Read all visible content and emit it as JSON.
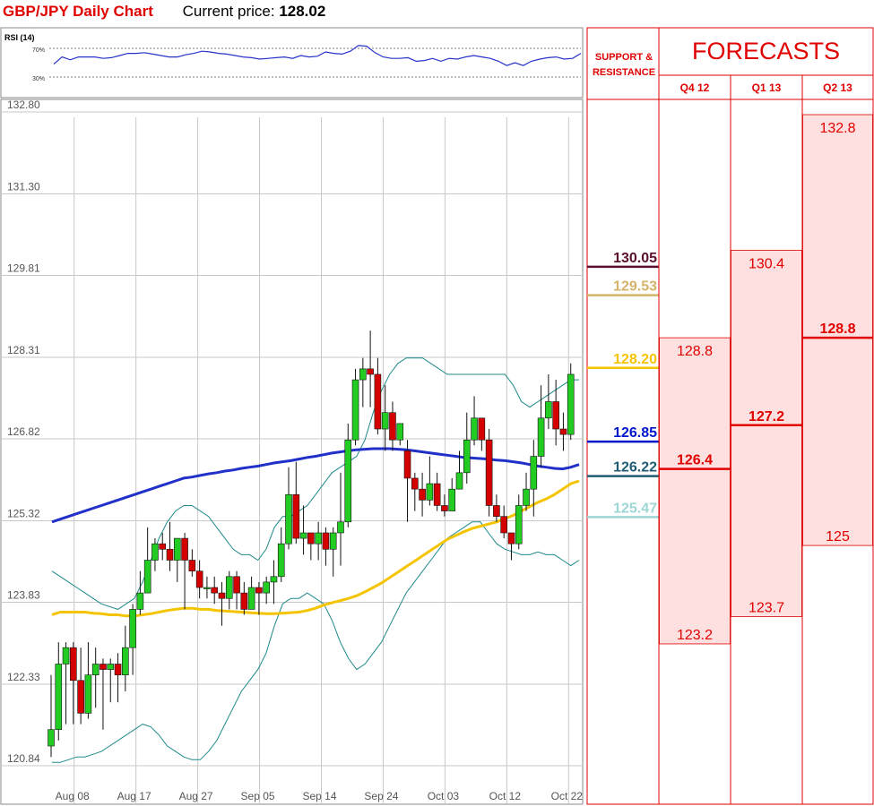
{
  "header": {
    "title": "GBP/JPY Daily Chart",
    "price_label": "Current price:",
    "price_value": "128.02"
  },
  "rsi": {
    "label": "RSI (14)",
    "levels": [
      "70%",
      "30%"
    ],
    "values": [
      48,
      58,
      54,
      58,
      58,
      58,
      56,
      57,
      60,
      63,
      63,
      64,
      62,
      60,
      58,
      58,
      61,
      63,
      66,
      65,
      63,
      62,
      60,
      58,
      57,
      55,
      56,
      57,
      58,
      56,
      60,
      58,
      59,
      65,
      63,
      62,
      66,
      74,
      73,
      64,
      58,
      56,
      56,
      57,
      52,
      53,
      56,
      52,
      56,
      55,
      58,
      60,
      58,
      56,
      52,
      46,
      50,
      46,
      52,
      55,
      57,
      58,
      55,
      56,
      63
    ]
  },
  "chart_data": {
    "type": "candlestick",
    "title": "GBP/JPY Daily Chart",
    "y_tick_labels": [
      "132.80",
      "131.30",
      "129.81",
      "128.31",
      "126.82",
      "125.32",
      "123.83",
      "122.33",
      "120.84"
    ],
    "y_ticks": [
      132.8,
      131.3,
      129.81,
      128.31,
      126.82,
      125.32,
      123.83,
      122.33,
      120.84
    ],
    "ylim": [
      120.84,
      132.8
    ],
    "x_tick_labels": [
      "Aug 08",
      "Aug 17",
      "Aug 27",
      "Sep 05",
      "Sep 14",
      "Sep 24",
      "Oct 03",
      "Oct 12",
      "Oct 22"
    ],
    "x_tick_index": [
      2,
      9,
      16,
      23,
      30,
      37,
      44,
      51,
      58
    ],
    "grid": true,
    "candles": [
      [
        121.2,
        121.5,
        122.5,
        121.0
      ],
      [
        121.5,
        122.7,
        123.1,
        121.3
      ],
      [
        122.7,
        123.0,
        123.1,
        121.6
      ],
      [
        123.0,
        122.4,
        123.1,
        121.6
      ],
      [
        122.4,
        121.8,
        123.0,
        121.6
      ],
      [
        121.8,
        122.5,
        123.1,
        121.7
      ],
      [
        122.5,
        122.7,
        123.0,
        121.9
      ],
      [
        122.7,
        122.6,
        122.8,
        121.5
      ],
      [
        122.6,
        122.7,
        122.8,
        122.0
      ],
      [
        122.7,
        122.5,
        122.9,
        122.0
      ],
      [
        122.5,
        123.0,
        123.4,
        122.2
      ],
      [
        123.0,
        123.7,
        123.8,
        122.5
      ],
      [
        123.7,
        124.0,
        124.4,
        123.6
      ],
      [
        124.0,
        124.6,
        125.2,
        124.0
      ],
      [
        124.6,
        124.9,
        125.0,
        124.4
      ],
      [
        124.9,
        124.8,
        125.1,
        124.6
      ],
      [
        124.8,
        124.6,
        125.3,
        124.4
      ],
      [
        124.6,
        125.0,
        125.0,
        124.2
      ],
      [
        125.0,
        124.6,
        125.1,
        123.7
      ],
      [
        124.6,
        124.4,
        124.8,
        124.3
      ],
      [
        124.4,
        124.1,
        124.6,
        123.9
      ],
      [
        124.1,
        124.1,
        124.3,
        123.9
      ],
      [
        124.1,
        124.0,
        124.3,
        123.8
      ],
      [
        124.0,
        123.9,
        124.2,
        123.4
      ],
      [
        123.9,
        124.3,
        124.4,
        123.7
      ],
      [
        124.3,
        124.0,
        124.4,
        123.7
      ],
      [
        124.0,
        123.7,
        124.2,
        123.6
      ],
      [
        123.7,
        124.1,
        124.3,
        123.7
      ],
      [
        124.1,
        124.0,
        124.2,
        123.6
      ],
      [
        124.0,
        124.2,
        124.3,
        123.8
      ],
      [
        124.2,
        124.3,
        124.6,
        123.8
      ],
      [
        124.3,
        124.9,
        125.2,
        124.2
      ],
      [
        124.9,
        125.8,
        126.3,
        124.8
      ],
      [
        125.8,
        125.0,
        126.4,
        124.9
      ],
      [
        125.0,
        125.1,
        125.6,
        124.7
      ],
      [
        125.1,
        124.9,
        125.1,
        124.6
      ],
      [
        124.9,
        125.1,
        125.3,
        124.6
      ],
      [
        125.1,
        124.8,
        125.2,
        124.5
      ],
      [
        124.8,
        125.1,
        125.2,
        124.3
      ],
      [
        125.1,
        125.3,
        126.2,
        124.5
      ],
      [
        125.3,
        126.8,
        127.1,
        125.2
      ],
      [
        126.8,
        127.9,
        128.1,
        126.7
      ],
      [
        127.9,
        128.1,
        128.3,
        127.4
      ],
      [
        128.1,
        128.0,
        128.8,
        127.4
      ],
      [
        128.0,
        127.0,
        128.3,
        126.9
      ],
      [
        127.0,
        127.3,
        127.8,
        126.6
      ],
      [
        127.3,
        126.8,
        127.5,
        126.6
      ],
      [
        126.8,
        127.1,
        127.1,
        126.7
      ]
    ],
    "candles2": [
      [
        126.6,
        126.1,
        126.8,
        125.3
      ],
      [
        126.1,
        125.9,
        126.2,
        125.5
      ],
      [
        125.9,
        125.7,
        126.2,
        125.4
      ],
      [
        125.7,
        126.0,
        126.5,
        125.6
      ],
      [
        126.0,
        125.6,
        126.2,
        125.5
      ],
      [
        125.6,
        125.5,
        125.8,
        125.4
      ],
      [
        125.5,
        125.9,
        126.1,
        125.5
      ],
      [
        125.9,
        126.2,
        126.6,
        125.9
      ],
      [
        126.2,
        126.8,
        127.3,
        126.0
      ],
      [
        126.8,
        127.2,
        127.6,
        126.7
      ],
      [
        127.2,
        126.8,
        127.2,
        126.6
      ],
      [
        126.8,
        125.6,
        127.0,
        125.4
      ],
      [
        125.6,
        125.4,
        125.8,
        125.3
      ],
      [
        125.4,
        125.1,
        125.6,
        125.0
      ],
      [
        125.1,
        124.9,
        125.1,
        124.6
      ],
      [
        124.9,
        125.6,
        125.8,
        124.8
      ],
      [
        125.6,
        125.9,
        126.2,
        125.5
      ],
      [
        125.9,
        126.5,
        126.8,
        125.4
      ],
      [
        126.5,
        127.2,
        127.8,
        126.3
      ],
      [
        127.2,
        127.5,
        128.0,
        127.0
      ],
      [
        127.5,
        127.0,
        127.9,
        126.7
      ],
      [
        127.0,
        126.9,
        127.3,
        126.6
      ],
      [
        126.9,
        128.0,
        128.2,
        126.8
      ]
    ],
    "ma_200": [
      125.3,
      125.35,
      125.4,
      125.45,
      125.5,
      125.55,
      125.6,
      125.65,
      125.7,
      125.75,
      125.8,
      125.85,
      125.9,
      125.95,
      126.0,
      126.05,
      126.1,
      126.12,
      126.15,
      126.18,
      126.2,
      126.23,
      126.25,
      126.28,
      126.3,
      126.32,
      126.35,
      126.38,
      126.4,
      126.42,
      126.45,
      126.48,
      126.5,
      126.53,
      126.56,
      126.58,
      126.6,
      126.62,
      126.63,
      126.64,
      126.64,
      126.64,
      126.63,
      126.62,
      126.6,
      126.58,
      126.56,
      126.54,
      126.52,
      126.5,
      126.48,
      126.47,
      126.46,
      126.45,
      126.43,
      126.42,
      126.4,
      126.38,
      126.35,
      126.32,
      126.3,
      126.28,
      126.27,
      126.3,
      126.35
    ],
    "ma_50": [
      123.6,
      123.65,
      123.65,
      123.65,
      123.65,
      123.63,
      123.62,
      123.6,
      123.6,
      123.58,
      123.58,
      123.6,
      123.62,
      123.65,
      123.68,
      123.7,
      123.72,
      123.72,
      123.7,
      123.7,
      123.68,
      123.67,
      123.66,
      123.65,
      123.64,
      123.63,
      123.62,
      123.62,
      123.63,
      123.64,
      123.65,
      123.68,
      123.72,
      123.78,
      123.82,
      123.86,
      123.9,
      123.95,
      124.02,
      124.1,
      124.18,
      124.28,
      124.38,
      124.48,
      124.58,
      124.68,
      124.78,
      124.88,
      124.98,
      125.05,
      125.12,
      125.18,
      125.22,
      125.26,
      125.3,
      125.36,
      125.42,
      125.5,
      125.58,
      125.66,
      125.72,
      125.8,
      125.9,
      126.0,
      126.05
    ],
    "bb_upper": [
      124.4,
      124.3,
      124.2,
      124.1,
      124.0,
      123.9,
      123.8,
      123.75,
      123.7,
      123.8,
      123.9,
      124.2,
      124.6,
      125.0,
      125.3,
      125.5,
      125.6,
      125.6,
      125.5,
      125.4,
      125.2,
      125.0,
      124.8,
      124.7,
      124.7,
      124.6,
      124.8,
      125.2,
      125.4,
      125.4,
      125.5,
      125.6,
      125.8,
      126.0,
      126.2,
      126.3,
      126.4,
      126.5,
      126.8,
      127.3,
      127.7,
      128.0,
      128.2,
      128.3,
      128.3,
      128.3,
      128.2,
      128.1,
      128.0,
      128.0,
      128.0,
      128.0,
      128.0,
      128.0,
      128.0,
      128.0,
      127.8,
      127.5,
      127.4,
      127.5,
      127.6,
      127.7,
      127.8,
      127.9,
      127.9
    ],
    "bb_lower": [
      120.9,
      120.9,
      120.95,
      121.0,
      121.0,
      121.05,
      121.1,
      121.2,
      121.3,
      121.4,
      121.5,
      121.6,
      121.55,
      121.4,
      121.2,
      121.1,
      121.0,
      120.95,
      120.95,
      121.1,
      121.3,
      121.6,
      121.9,
      122.2,
      122.4,
      122.6,
      122.9,
      123.4,
      123.8,
      123.9,
      123.9,
      124.0,
      123.9,
      123.8,
      123.5,
      123.1,
      122.8,
      122.6,
      122.7,
      122.9,
      123.1,
      123.4,
      123.7,
      124.0,
      124.2,
      124.4,
      124.6,
      124.8,
      125.0,
      125.1,
      125.2,
      125.3,
      125.3,
      125.1,
      124.9,
      124.8,
      124.75,
      124.7,
      124.7,
      124.75,
      124.7,
      124.7,
      124.6,
      124.5,
      124.6
    ]
  },
  "levels_panel": {
    "header": [
      "SUPPORT &",
      "RESISTANCE"
    ],
    "levels": [
      {
        "label": "130.05",
        "value": 130.05,
        "color": "#5a0f2e"
      },
      {
        "label": "129.53",
        "value": 129.53,
        "color": "#d4b36a"
      },
      {
        "label": "128.20",
        "value": 128.2,
        "color": "#f5c400"
      },
      {
        "label": "126.85",
        "value": 126.85,
        "color": "#0018cc"
      },
      {
        "label": "126.22",
        "value": 126.22,
        "color": "#1f5c73"
      },
      {
        "label": "125.47",
        "value": 125.47,
        "color": "#9ed6d6"
      }
    ]
  },
  "forecasts": {
    "title": "FORECASTS",
    "columns": [
      {
        "name": "Q4 12",
        "high": "128.8",
        "mid": "126.4",
        "low": "123.2",
        "high_v": 128.8,
        "mid_v": 126.4,
        "low_v": 123.2
      },
      {
        "name": "Q1 13",
        "high": "130.4",
        "mid": "127.2",
        "low": "123.7",
        "high_v": 130.4,
        "mid_v": 127.2,
        "low_v": 123.7
      },
      {
        "name": "Q2 13",
        "high": "132.8",
        "mid": "128.8",
        "low": "125",
        "high_v": 132.8,
        "mid_v": 128.8,
        "low_v": 125.0
      }
    ],
    "text_color": "#e00000",
    "band_color": "#ffe0e0"
  }
}
